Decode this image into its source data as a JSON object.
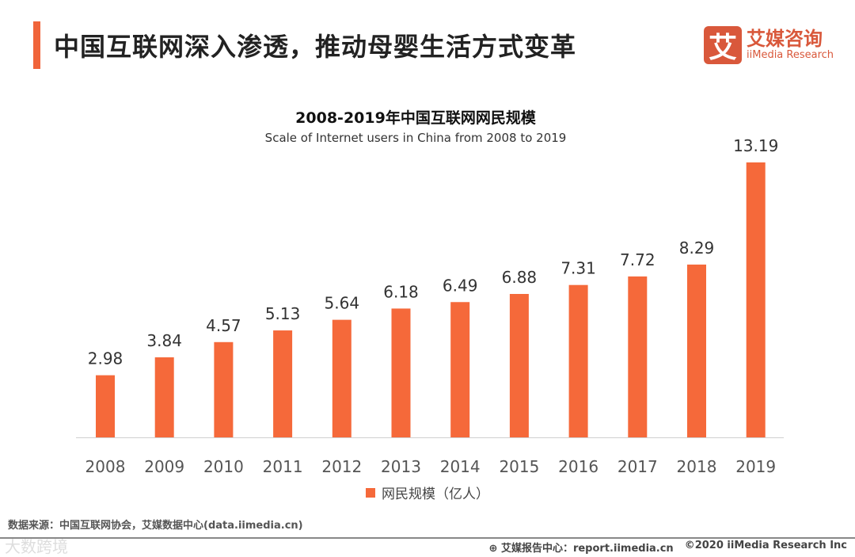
{
  "header": {
    "title": "中国互联网深入渗透，推动母婴生活方式变革"
  },
  "logo": {
    "mark": "艾",
    "name_cn": "艾媒咨询",
    "name_en": "iiMedia Research"
  },
  "colors": {
    "bar": "#f5693a",
    "accent": "#f0643a",
    "brand": "#d9583b"
  },
  "chart_data": {
    "type": "bar",
    "title": "2008-2019年中国互联网网民规模",
    "subtitle": "Scale of Internet users in China from 2008 to 2019",
    "categories": [
      "2008",
      "2009",
      "2010",
      "2011",
      "2012",
      "2013",
      "2014",
      "2015",
      "2016",
      "2017",
      "2018",
      "2019"
    ],
    "series": [
      {
        "name": "网民规模（亿人）",
        "values": [
          2.98,
          3.84,
          4.57,
          5.13,
          5.64,
          6.18,
          6.49,
          6.88,
          7.31,
          7.72,
          8.29,
          13.19
        ]
      }
    ],
    "ylim": [
      0,
      13.19
    ],
    "grid": false,
    "legend": "bottom-center",
    "xlabel": "",
    "ylabel": ""
  },
  "footer": {
    "source": "数据来源：中国互联网协会，艾媒数据中心(data.iimedia.cn)",
    "report": "艾媒报告中心：report.iimedia.cn",
    "copyright": "©2020  iiMedia Research  Inc",
    "watermark": "大数跨境"
  }
}
